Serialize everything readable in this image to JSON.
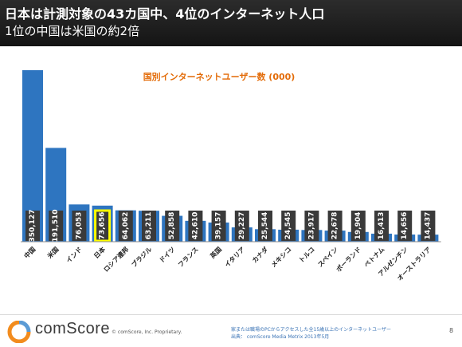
{
  "header": {
    "title": "日本は計測対象の43カ国中、4位のインターネット人口",
    "subtitle": "1位の中国は米国の約2倍"
  },
  "chart_data": {
    "type": "bar",
    "title": "国別インターネットユーザー数 (000)",
    "categories": [
      "中国",
      "米国",
      "インド",
      "日本",
      "ロシア連邦",
      "ブラジル",
      "ドイツ",
      "フランス",
      "英国",
      "イタリア",
      "カナダ",
      "メキシコ",
      "トルコ",
      "スペイン",
      "ポーランド",
      "ベトナム",
      "アルゼンチン",
      "オーストラリア"
    ],
    "values": [
      350127,
      191510,
      76053,
      73656,
      64062,
      63211,
      52858,
      42610,
      39157,
      29227,
      25544,
      24545,
      23917,
      22678,
      19904,
      16413,
      14656,
      14437
    ],
    "value_labels": [
      "350,127",
      "191,510",
      "76,053",
      "73,656",
      "64,062",
      "63,211",
      "52,858",
      "42,610",
      "39,157",
      "29,227",
      "25,544",
      "24,545",
      "23,917",
      "22,678",
      "19,904",
      "16,413",
      "14,656",
      "14,437"
    ],
    "highlight_category": "日本",
    "ylim": [
      0,
      350127
    ],
    "grid": false,
    "legend": "none",
    "bar_color": "#2e75c0",
    "highlight_color": "#ffff00",
    "label_box_color": "#3a3a3a",
    "title_color": "#e36c09"
  },
  "footer": {
    "brand": "comScore",
    "copyright": "© comScore, Inc.   Proprietary.",
    "note_line1": "家または職場のPCからアクセスした全15歳以上のインターネットユーザー",
    "note_line2": "出典： comScore Media Metrix 2013年5月",
    "page_number": "8"
  }
}
